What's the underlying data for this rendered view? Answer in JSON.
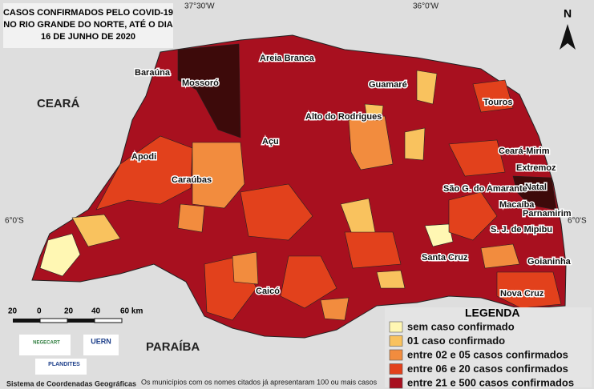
{
  "title": [
    "CASOS CONFIRMADOS PELO COVID-19",
    "NO RIO GRANDE DO NORTE, ATÉ O DIA",
    "16 DE JUNHO DE 2020"
  ],
  "coordinates": {
    "top_left": "37°30'W",
    "top_right": "36°0'W",
    "left": "6°0'S",
    "right": "6°0'S"
  },
  "north": "N",
  "regions": [
    "CEARÁ",
    "PARAÍBA"
  ],
  "municipalities": [
    "Baraúna",
    "Mossoró",
    "Areia Branca",
    "Guamaré",
    "Touros",
    "Alto do Rodrigues",
    "Açu",
    "Apodi",
    "Caraúbas",
    "Ceará-Mirim",
    "Extremoz",
    "Natal",
    "São G. do Amarante",
    "Macaíba",
    "Parnamirim",
    "S. J. de Mipibu",
    "Santa Cruz",
    "Goianinha",
    "Caicó",
    "Nova Cruz"
  ],
  "scale_bar": [
    "20",
    "0",
    "20",
    "40",
    "60 km"
  ],
  "logos": [
    "NEGECART",
    "UERN",
    "PLANDITES"
  ],
  "coordinate_system": "Sistema de Coordenadas Geográficas",
  "footnote": "Os municípios com os nomes citados já apresentaram 100 ou mais casos",
  "legend": {
    "title": "LEGENDA",
    "items": [
      {
        "label": "sem caso confirmado",
        "color": "#fff7b3"
      },
      {
        "label": "01 caso confirmado",
        "color": "#f9c25e"
      },
      {
        "label": "entre 02 e 05 casos confirmados",
        "color": "#f28c3e"
      },
      {
        "label": "entre 06 e 20 casos confirmados",
        "color": "#e2411c"
      },
      {
        "label": "entre 21 e 500 casos confirmados",
        "color": "#a8101f"
      }
    ]
  }
}
